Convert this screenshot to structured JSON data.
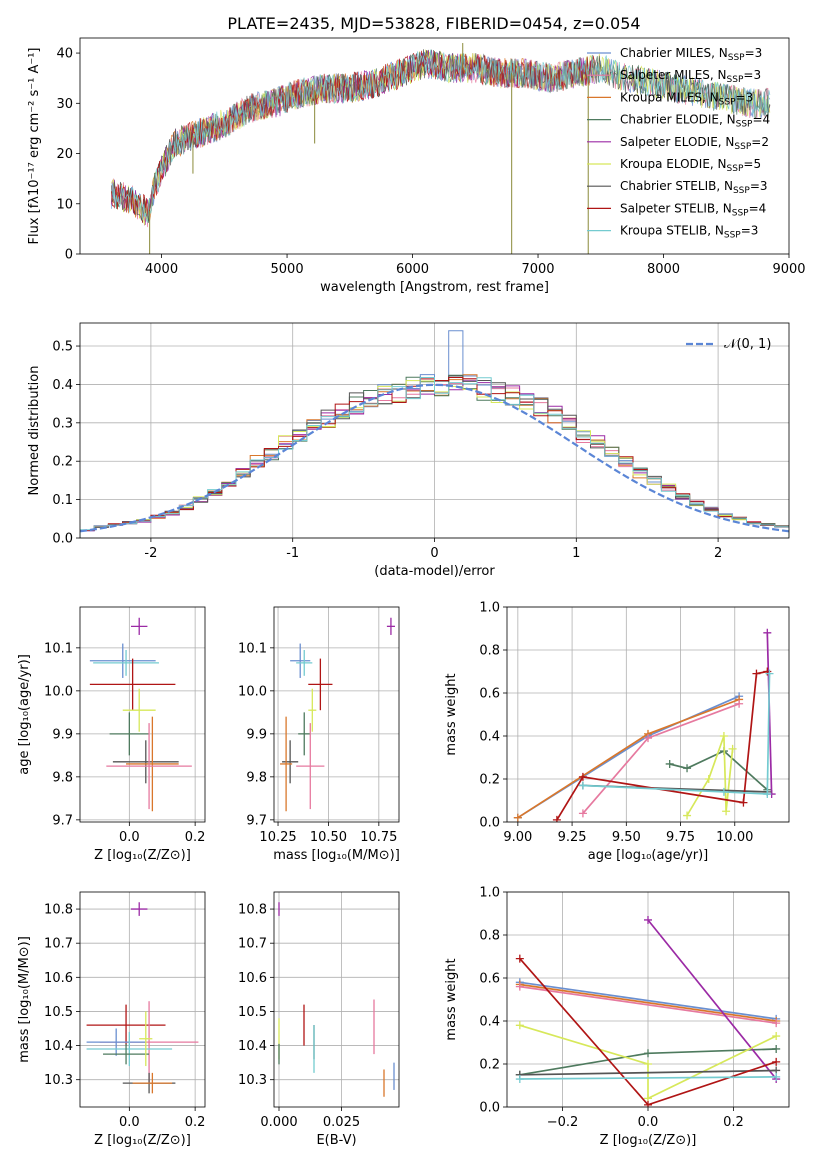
{
  "title": "PLATE=2435, MJD=53828, FIBERID=0454, z=0.054",
  "colors": {
    "Chabrier MILES": "#6a8fd0",
    "Salpeter MILES": "#e6799f",
    "Kroupa MILES": "#d9772b",
    "Chabrier ELODIE": "#4e7a5e",
    "Salpeter ELODIE": "#9b2aa5",
    "Kroupa ELODIE": "#d7e85a",
    "Chabrier STELIB": "#555555",
    "Salpeter STELIB": "#b01515",
    "Kroupa STELIB": "#74cbd0"
  },
  "chart_data": [
    {
      "id": "spectrum",
      "type": "line",
      "xlabel": "wavelength [Angstrom, rest frame]",
      "ylabel": "Flux [fλ10⁻¹⁷ erg cm⁻² s⁻¹ A⁻¹]",
      "xlim": [
        3350,
        9000
      ],
      "ylim": [
        0,
        43
      ],
      "xticks": [
        4000,
        5000,
        6000,
        7000,
        8000,
        9000
      ],
      "yticks": [
        0,
        10,
        20,
        30,
        40
      ],
      "legend_position": "right",
      "legend": [
        {
          "label": "Chabrier MILES, N",
          "sub": "SSP",
          "tail": "=3",
          "model": "Chabrier MILES"
        },
        {
          "label": "Salpeter MILES, N",
          "sub": "SSP",
          "tail": "=3",
          "model": "Salpeter MILES"
        },
        {
          "label": "Kroupa MILES, N",
          "sub": "SSP",
          "tail": "=3",
          "model": "Kroupa MILES"
        },
        {
          "label": "Chabrier ELODIE, N",
          "sub": "SSP",
          "tail": "=4",
          "model": "Chabrier ELODIE"
        },
        {
          "label": "Salpeter ELODIE, N",
          "sub": "SSP",
          "tail": "=2",
          "model": "Salpeter ELODIE"
        },
        {
          "label": "Kroupa ELODIE, N",
          "sub": "SSP",
          "tail": "=5",
          "model": "Kroupa ELODIE"
        },
        {
          "label": "Chabrier STELIB, N",
          "sub": "SSP",
          "tail": "=3",
          "model": "Chabrier STELIB"
        },
        {
          "label": "Salpeter STELIB, N",
          "sub": "SSP",
          "tail": "=4",
          "model": "Salpeter STELIB"
        },
        {
          "label": "Kroupa STELIB, N",
          "sub": "SSP",
          "tail": "=3",
          "model": "Kroupa STELIB"
        }
      ],
      "continuum": [
        [
          3600,
          12
        ],
        [
          3750,
          11
        ],
        [
          3900,
          8
        ],
        [
          3950,
          14
        ],
        [
          4100,
          22
        ],
        [
          4300,
          24
        ],
        [
          4500,
          26
        ],
        [
          4700,
          29
        ],
        [
          4900,
          30
        ],
        [
          5100,
          32
        ],
        [
          5300,
          33
        ],
        [
          5500,
          33
        ],
        [
          5700,
          34
        ],
        [
          5900,
          36
        ],
        [
          6100,
          38
        ],
        [
          6300,
          37
        ],
        [
          6500,
          37
        ],
        [
          6700,
          36
        ],
        [
          6900,
          36
        ],
        [
          7100,
          35
        ],
        [
          7300,
          36
        ],
        [
          7500,
          37
        ],
        [
          7700,
          35
        ],
        [
          7900,
          34
        ],
        [
          8100,
          33
        ],
        [
          8300,
          32
        ],
        [
          8500,
          31
        ],
        [
          8700,
          30
        ],
        [
          8850,
          30
        ]
      ],
      "spikes": [
        [
          3905,
          0
        ],
        [
          6790,
          0
        ],
        [
          7400,
          0
        ],
        [
          6400,
          42
        ],
        [
          5220,
          22
        ],
        [
          4250,
          16
        ]
      ]
    },
    {
      "id": "residuals",
      "type": "line",
      "xlabel": "(data-model)/error",
      "ylabel": "Normed distribution",
      "xlim": [
        -2.5,
        2.5
      ],
      "ylim": [
        0,
        0.56
      ],
      "xticks": [
        -2,
        -1,
        0,
        1,
        2
      ],
      "yticks": [
        0.0,
        0.1,
        0.2,
        0.3,
        0.4,
        0.5
      ],
      "legend_position": "top-right",
      "reference_label": "𝒩(0, 1)",
      "histogram_base": [
        0.02,
        0.03,
        0.035,
        0.04,
        0.045,
        0.055,
        0.065,
        0.08,
        0.1,
        0.12,
        0.14,
        0.17,
        0.2,
        0.22,
        0.25,
        0.27,
        0.29,
        0.31,
        0.33,
        0.35,
        0.36,
        0.37,
        0.38,
        0.39,
        0.395,
        0.4,
        0.4,
        0.395,
        0.39,
        0.38,
        0.37,
        0.36,
        0.34,
        0.32,
        0.3,
        0.27,
        0.25,
        0.22,
        0.2,
        0.17,
        0.15,
        0.13,
        0.11,
        0.09,
        0.075,
        0.06,
        0.05,
        0.04,
        0.035,
        0.03
      ]
    },
    {
      "id": "age_vs_Z",
      "type": "scatter",
      "xlabel": "Z [log₁₀(Z/Z⊙)]",
      "ylabel": "age  [log₁₀(age/yr)]",
      "xlim": [
        -0.15,
        0.23
      ],
      "ylim": [
        9.695,
        10.195
      ],
      "xticks": [
        0.0,
        0.2
      ],
      "xtick_labels": [
        "0.0",
        "0.2"
      ],
      "yticks": [
        9.7,
        9.8,
        9.9,
        10.0,
        10.1
      ],
      "points": [
        {
          "model": "Salpeter ELODIE",
          "x": 0.03,
          "y": 10.15,
          "xerr": 0.025,
          "yerr": 0.02
        },
        {
          "model": "Chabrier MILES",
          "x": -0.02,
          "y": 10.07,
          "xerr": 0.1,
          "yerr": 0.04
        },
        {
          "model": "Kroupa STELIB",
          "x": -0.01,
          "y": 10.065,
          "xerr": 0.1,
          "yerr": 0.03
        },
        {
          "model": "Salpeter STELIB",
          "x": 0.01,
          "y": 10.015,
          "xerr": 0.13,
          "yerr": 0.06
        },
        {
          "model": "Kroupa ELODIE",
          "x": 0.03,
          "y": 9.955,
          "xerr": 0.05,
          "yerr": 0.05
        },
        {
          "model": "Chabrier ELODIE",
          "x": 0.0,
          "y": 9.9,
          "xerr": 0.06,
          "yerr": 0.05
        },
        {
          "model": "Chabrier STELIB",
          "x": 0.05,
          "y": 9.835,
          "xerr": 0.1,
          "yerr": 0.05
        },
        {
          "model": "Kroupa MILES",
          "x": 0.07,
          "y": 9.83,
          "xerr": 0.08,
          "yerr": 0.11
        },
        {
          "model": "Salpeter MILES",
          "x": 0.06,
          "y": 9.825,
          "xerr": 0.13,
          "yerr": 0.1
        }
      ]
    },
    {
      "id": "age_vs_mass",
      "type": "scatter",
      "xlabel": "mass [log₁₀(M/M⊙)]",
      "ylabel": "",
      "xlim": [
        10.23,
        10.85
      ],
      "ylim": [
        9.695,
        10.195
      ],
      "xticks": [
        10.25,
        10.5,
        10.75
      ],
      "xtick_labels": [
        "10.25",
        "10.50",
        "10.75"
      ],
      "yticks": [
        9.7,
        9.8,
        9.9,
        10.0,
        10.1
      ],
      "points": [
        {
          "model": "Salpeter ELODIE",
          "x": 10.81,
          "y": 10.15,
          "xerr": 0.02,
          "yerr": 0.02
        },
        {
          "model": "Chabrier MILES",
          "x": 10.36,
          "y": 10.07,
          "xerr": 0.05,
          "yerr": 0.04
        },
        {
          "model": "Kroupa STELIB",
          "x": 10.38,
          "y": 10.065,
          "xerr": 0.04,
          "yerr": 0.03
        },
        {
          "model": "Salpeter STELIB",
          "x": 10.46,
          "y": 10.015,
          "xerr": 0.06,
          "yerr": 0.06
        },
        {
          "model": "Kroupa ELODIE",
          "x": 10.42,
          "y": 9.955,
          "xerr": 0.02,
          "yerr": 0.05
        },
        {
          "model": "Chabrier ELODIE",
          "x": 10.38,
          "y": 9.9,
          "xerr": 0.03,
          "yerr": 0.05
        },
        {
          "model": "Chabrier STELIB",
          "x": 10.31,
          "y": 9.835,
          "xerr": 0.04,
          "yerr": 0.05
        },
        {
          "model": "Kroupa MILES",
          "x": 10.29,
          "y": 9.83,
          "xerr": 0.03,
          "yerr": 0.11
        },
        {
          "model": "Salpeter MILES",
          "x": 10.41,
          "y": 9.825,
          "xerr": 0.07,
          "yerr": 0.1
        }
      ]
    },
    {
      "id": "massweight_vs_age",
      "type": "line",
      "xlabel": "age  [log₁₀(age/yr)]",
      "ylabel": "mass weight",
      "xlim": [
        8.95,
        10.25
      ],
      "ylim": [
        0.0,
        1.0
      ],
      "xticks": [
        9.0,
        9.25,
        9.5,
        9.75,
        10.0
      ],
      "xtick_labels": [
        "9.00",
        "9.25",
        "9.50",
        "9.75",
        "10.00"
      ],
      "yticks": [
        0.0,
        0.2,
        0.4,
        0.6,
        0.8,
        1.0
      ],
      "series": [
        {
          "model": "Chabrier MILES",
          "x": [
            9.0,
            9.6,
            10.02
          ],
          "y": [
            0.02,
            0.4,
            0.585
          ]
        },
        {
          "model": "Kroupa MILES",
          "x": [
            9.0,
            9.6,
            10.02
          ],
          "y": [
            0.02,
            0.41,
            0.57
          ]
        },
        {
          "model": "Salpeter MILES",
          "x": [
            9.3,
            9.6,
            10.02
          ],
          "y": [
            0.04,
            0.39,
            0.55
          ]
        },
        {
          "model": "Chabrier ELODIE",
          "x": [
            9.7,
            9.78,
            9.95,
            10.15
          ],
          "y": [
            0.27,
            0.25,
            0.33,
            0.15
          ]
        },
        {
          "model": "Salpeter ELODIE",
          "x": [
            10.15,
            10.17
          ],
          "y": [
            0.88,
            0.13
          ]
        },
        {
          "model": "Kroupa ELODIE",
          "x": [
            9.78,
            9.88,
            9.95,
            9.96,
            9.99
          ],
          "y": [
            0.03,
            0.2,
            0.4,
            0.05,
            0.34
          ]
        },
        {
          "model": "Chabrier STELIB",
          "x": [
            9.3,
            10.15
          ],
          "y": [
            0.17,
            0.14
          ]
        },
        {
          "model": "Salpeter STELIB",
          "x": [
            9.18,
            9.3,
            10.04,
            10.1,
            10.15
          ],
          "y": [
            0.01,
            0.21,
            0.09,
            0.69,
            0.7
          ]
        },
        {
          "model": "Kroupa STELIB",
          "x": [
            9.3,
            9.95,
            10.15,
            10.16
          ],
          "y": [
            0.17,
            0.14,
            0.13,
            0.69
          ]
        }
      ]
    },
    {
      "id": "mass_vs_Z",
      "type": "scatter",
      "xlabel": "Z [log₁₀(Z/Z⊙)]",
      "ylabel": "mass [log₁₀(M/M⊙)]",
      "xlim": [
        -0.15,
        0.23
      ],
      "ylim": [
        10.22,
        10.85
      ],
      "xticks": [
        0.0,
        0.2
      ],
      "xtick_labels": [
        "0.0",
        "0.2"
      ],
      "yticks": [
        10.3,
        10.4,
        10.5,
        10.6,
        10.7,
        10.8
      ],
      "points": [
        {
          "model": "Salpeter ELODIE",
          "x": 0.03,
          "y": 10.8,
          "xerr": 0.025,
          "yerr": 0.02
        },
        {
          "model": "Salpeter STELIB",
          "x": -0.01,
          "y": 10.46,
          "xerr": 0.12,
          "yerr": 0.06
        },
        {
          "model": "Salpeter MILES",
          "x": 0.06,
          "y": 10.41,
          "xerr": 0.15,
          "yerr": 0.12
        },
        {
          "model": "Chabrier MILES",
          "x": -0.04,
          "y": 10.41,
          "xerr": 0.09,
          "yerr": 0.04
        },
        {
          "model": "Kroupa STELIB",
          "x": 0.0,
          "y": 10.39,
          "xerr": 0.13,
          "yerr": 0.05
        },
        {
          "model": "Chabrier ELODIE",
          "x": -0.01,
          "y": 10.375,
          "xerr": 0.07,
          "yerr": 0.03
        },
        {
          "model": "Kroupa ELODIE",
          "x": 0.05,
          "y": 10.42,
          "xerr": 0.02,
          "yerr": 0.08
        },
        {
          "model": "Chabrier STELIB",
          "x": 0.06,
          "y": 10.29,
          "xerr": 0.08,
          "yerr": 0.03
        },
        {
          "model": "Kroupa MILES",
          "x": 0.07,
          "y": 10.29,
          "xerr": 0.06,
          "yerr": 0.03
        }
      ]
    },
    {
      "id": "mass_vs_ebv",
      "type": "scatter",
      "xlabel": "E(B-V)",
      "ylabel": "",
      "xlim": [
        -0.002,
        0.048
      ],
      "ylim": [
        10.22,
        10.85
      ],
      "xticks": [
        0.0,
        0.025
      ],
      "xtick_labels": [
        "0.000",
        "0.025"
      ],
      "yticks": [
        10.3,
        10.4,
        10.5,
        10.6,
        10.7,
        10.8
      ],
      "points": [
        {
          "model": "Salpeter ELODIE",
          "x": 0.0,
          "y": 10.8,
          "xerr": 0.0,
          "yerr": 0.02
        },
        {
          "model": "Kroupa ELODIE",
          "x": 0.0,
          "y": 10.42,
          "xerr": 0.0,
          "yerr": 0.06
        },
        {
          "model": "Chabrier ELODIE",
          "x": 0.0,
          "y": 10.375,
          "xerr": 0.0,
          "yerr": 0.03
        },
        {
          "model": "Salpeter STELIB",
          "x": 0.01,
          "y": 10.46,
          "xerr": 0.0,
          "yerr": 0.06
        },
        {
          "model": "Chabrier STELIB",
          "x": 0.014,
          "y": 10.41,
          "xerr": 0.0,
          "yerr": 0.05
        },
        {
          "model": "Kroupa STELIB",
          "x": 0.014,
          "y": 10.39,
          "xerr": 0.0,
          "yerr": 0.07
        },
        {
          "model": "Salpeter MILES",
          "x": 0.038,
          "y": 10.455,
          "xerr": 0.0,
          "yerr": 0.08
        },
        {
          "model": "Kroupa MILES",
          "x": 0.042,
          "y": 10.29,
          "xerr": 0.0,
          "yerr": 0.04
        },
        {
          "model": "Chabrier MILES",
          "x": 0.046,
          "y": 10.31,
          "xerr": 0.0,
          "yerr": 0.04
        }
      ]
    },
    {
      "id": "massweight_vs_Z",
      "type": "line",
      "xlabel": "Z [log₁₀(Z/Z⊙)]",
      "ylabel": "mass weight",
      "xlim": [
        -0.33,
        0.33
      ],
      "ylim": [
        0.0,
        1.0
      ],
      "xticks": [
        -0.2,
        0.0,
        0.2
      ],
      "xtick_labels": [
        "−0.2",
        "0.0",
        "0.2"
      ],
      "yticks": [
        0.0,
        0.2,
        0.4,
        0.6,
        0.8,
        1.0
      ],
      "series": [
        {
          "model": "Chabrier MILES",
          "x": [
            -0.3,
            0.3
          ],
          "y": [
            0.58,
            0.41
          ]
        },
        {
          "model": "Kroupa MILES",
          "x": [
            -0.3,
            0.3
          ],
          "y": [
            0.57,
            0.4
          ]
        },
        {
          "model": "Salpeter MILES",
          "x": [
            -0.3,
            0.3
          ],
          "y": [
            0.56,
            0.39
          ]
        },
        {
          "model": "Chabrier ELODIE",
          "x": [
            -0.3,
            0.0,
            0.3
          ],
          "y": [
            0.15,
            0.25,
            0.27
          ]
        },
        {
          "model": "Salpeter ELODIE",
          "x": [
            0.0,
            0.3
          ],
          "y": [
            0.87,
            0.13
          ]
        },
        {
          "model": "Kroupa ELODIE",
          "x": [
            -0.3,
            0.0,
            0.0,
            0.3
          ],
          "y": [
            0.38,
            0.2,
            0.04,
            0.33
          ]
        },
        {
          "model": "Chabrier STELIB",
          "x": [
            -0.3,
            0.3
          ],
          "y": [
            0.15,
            0.17
          ]
        },
        {
          "model": "Salpeter STELIB",
          "x": [
            -0.3,
            0.0,
            0.3
          ],
          "y": [
            0.69,
            0.01,
            0.21
          ]
        },
        {
          "model": "Kroupa STELIB",
          "x": [
            -0.3,
            0.3
          ],
          "y": [
            0.13,
            0.14
          ]
        }
      ]
    }
  ]
}
